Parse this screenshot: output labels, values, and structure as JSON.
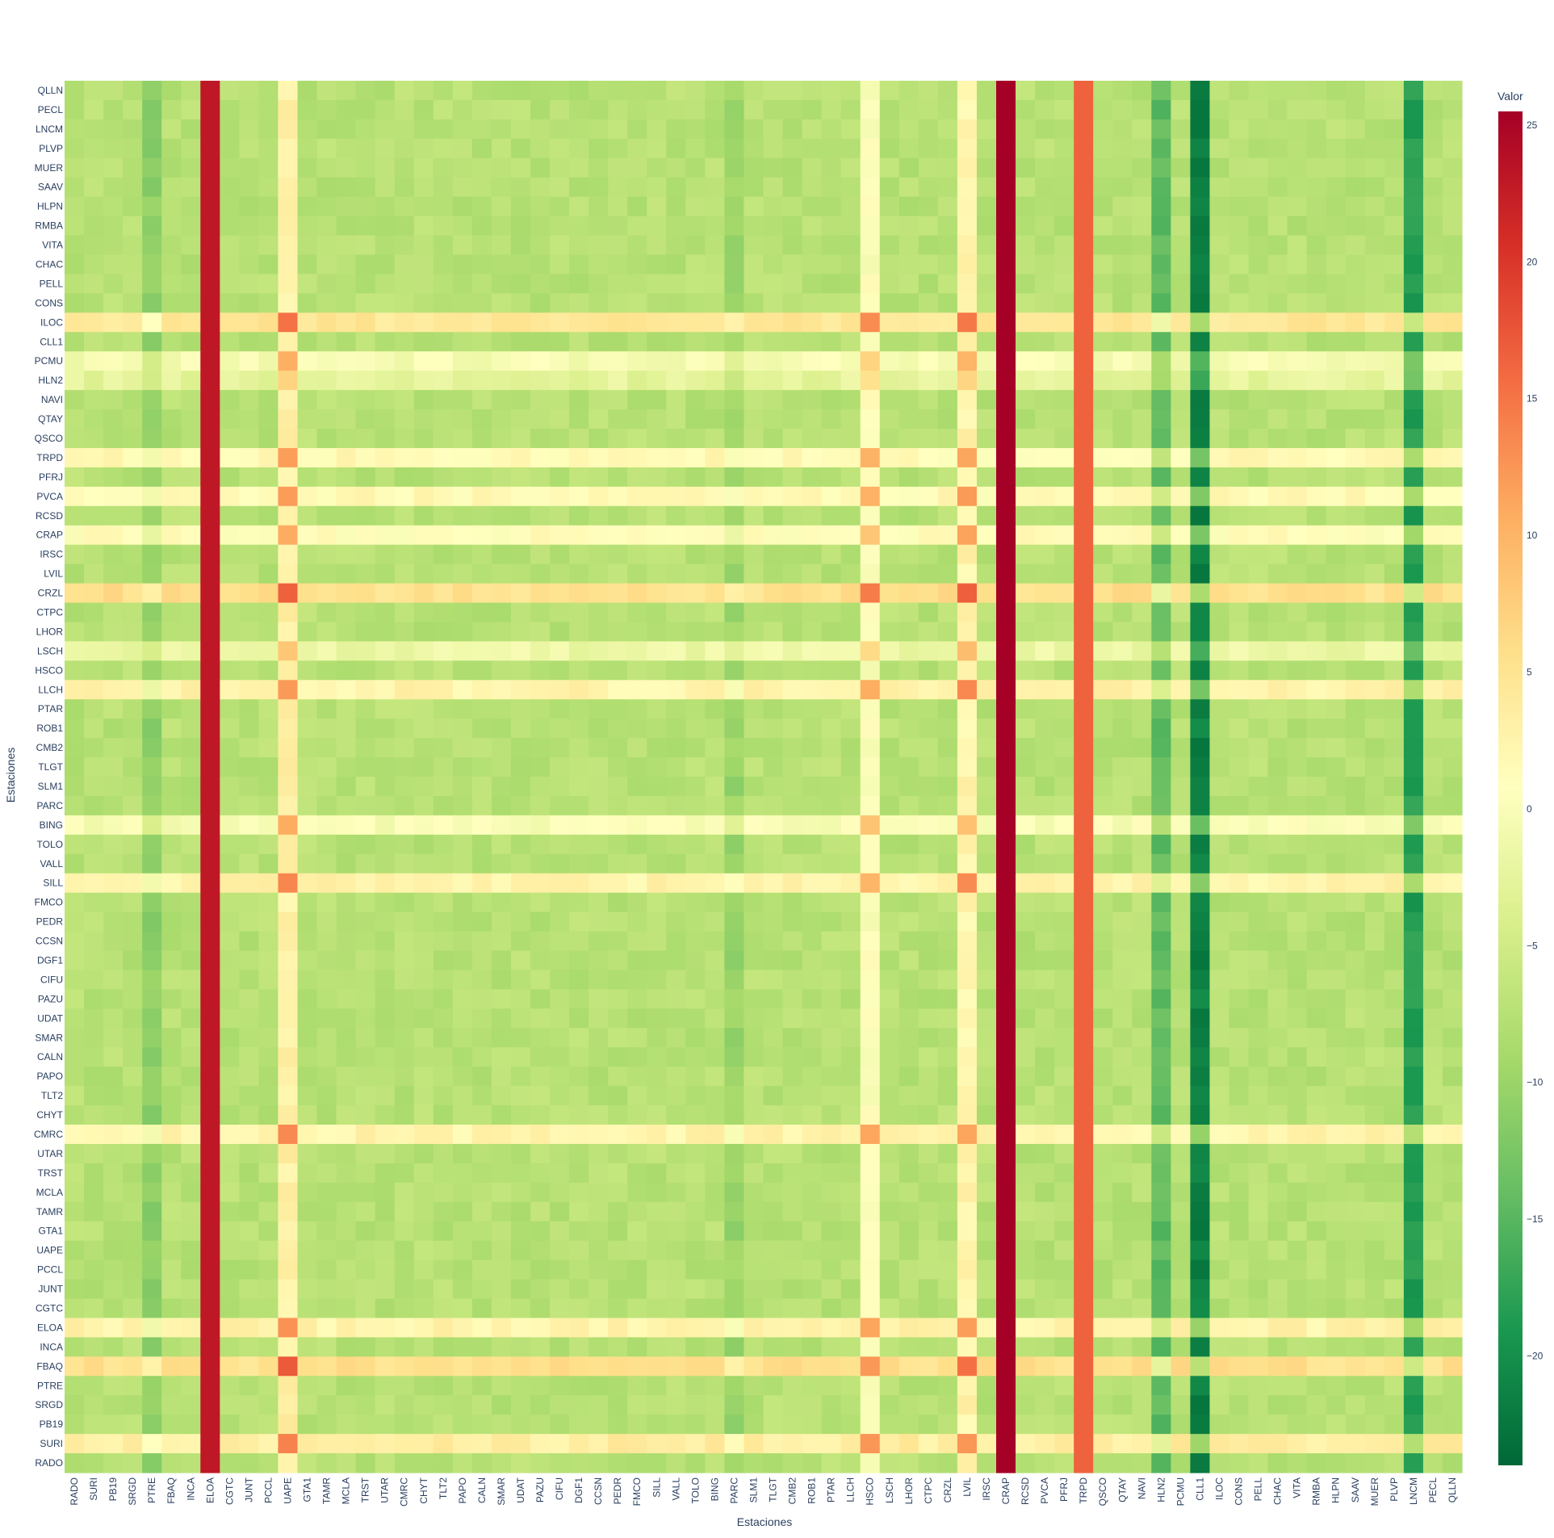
{
  "chart_data": {
    "type": "heatmap",
    "xlabel": "Estaciones",
    "ylabel": "Estaciones",
    "x": [
      "RADO",
      "SURI",
      "PB19",
      "SRGD",
      "PTRE",
      "FBAQ",
      "INCA",
      "ELOA",
      "CGTC",
      "JUNT",
      "PCCL",
      "UAPE",
      "GTA1",
      "TAMR",
      "MCLA",
      "TRST",
      "UTAR",
      "CMRC",
      "CHYT",
      "TLT2",
      "PAPO",
      "CALN",
      "SMAR",
      "UDAT",
      "PAZU",
      "CIFU",
      "DGF1",
      "CCSN",
      "PEDR",
      "FMCO",
      "SILL",
      "VALL",
      "TOLO",
      "BING",
      "PARC",
      "SLM1",
      "TLGT",
      "CMB2",
      "ROB1",
      "PTAR",
      "LLCH",
      "HSCO",
      "LSCH",
      "LHOR",
      "CTPC",
      "CRZL",
      "LVIL",
      "IRSC",
      "CRAP",
      "RCSD",
      "PVCA",
      "PFRJ",
      "TRPD",
      "QSCO",
      "QTAY",
      "NAVI",
      "HLN2",
      "PCMU",
      "CLL1",
      "ILOC",
      "CONS",
      "PELL",
      "CHAC",
      "VITA",
      "RMBA",
      "HLPN",
      "SAAV",
      "MUER",
      "PLVP",
      "LNCM",
      "PECL",
      "QLLN"
    ],
    "y": [
      "QLLN",
      "PECL",
      "LNCM",
      "PLVP",
      "MUER",
      "SAAV",
      "HLPN",
      "RMBA",
      "VITA",
      "CHAC",
      "PELL",
      "CONS",
      "ILOC",
      "CLL1",
      "PCMU",
      "HLN2",
      "NAVI",
      "QTAY",
      "QSCO",
      "TRPD",
      "PFRJ",
      "PVCA",
      "RCSD",
      "CRAP",
      "IRSC",
      "LVIL",
      "CRZL",
      "CTPC",
      "LHOR",
      "LSCH",
      "HSCO",
      "LLCH",
      "PTAR",
      "ROB1",
      "CMB2",
      "TLGT",
      "SLM1",
      "PARC",
      "BING",
      "TOLO",
      "VALL",
      "SILL",
      "FMCO",
      "PEDR",
      "CCSN",
      "DGF1",
      "CIFU",
      "PAZU",
      "UDAT",
      "SMAR",
      "CALN",
      "PAPO",
      "TLT2",
      "CHYT",
      "CMRC",
      "UTAR",
      "TRST",
      "MCLA",
      "TAMR",
      "GTA1",
      "UAPE",
      "PCCL",
      "JUNT",
      "CGTC",
      "ELOA",
      "INCA",
      "FBAQ",
      "PTRE",
      "SRGD",
      "PB19",
      "SURI",
      "RADO"
    ],
    "colorscale": "RdYlGn (reversed)",
    "zmin": -24,
    "zmax": 25.5,
    "colorbar": {
      "title": "Valor",
      "ticks": [
        25,
        20,
        15,
        10,
        5,
        0,
        -5,
        -10,
        -15,
        -20
      ],
      "ticklabels": [
        "25",
        "20",
        "15",
        "10",
        "5",
        "0",
        "−5",
        "−10",
        "−15",
        "−20"
      ]
    },
    "z_model": {
      "base": -7.5,
      "column_offsets": {
        "ELOA": 31.5,
        "CRAP": 33,
        "TRPD": 23,
        "UAPE": 10.5,
        "LVIL": 10,
        "HSCO": 8,
        "PTRE": -3.5,
        "PARC": -2.5,
        "CLL1": -14,
        "LNCM": -11,
        "HLN2": -7
      },
      "row_offsets": {
        "TRPD": 9,
        "CRAP": 8.5,
        "ELOA": 10,
        "FBAQ": 13,
        "CRZL": 13,
        "SURI": 11,
        "ILOC": 12,
        "PVCA": 9,
        "LLCH": 10,
        "SILL": 10,
        "CMRC": 10,
        "BING": 7.5,
        "PCMU": 7,
        "HLN2": 5,
        "LSCH": 6
      },
      "pinned": {
        "ELOA": 23,
        "CRAP": 25.5,
        "TRPD": 16.5
      }
    }
  }
}
